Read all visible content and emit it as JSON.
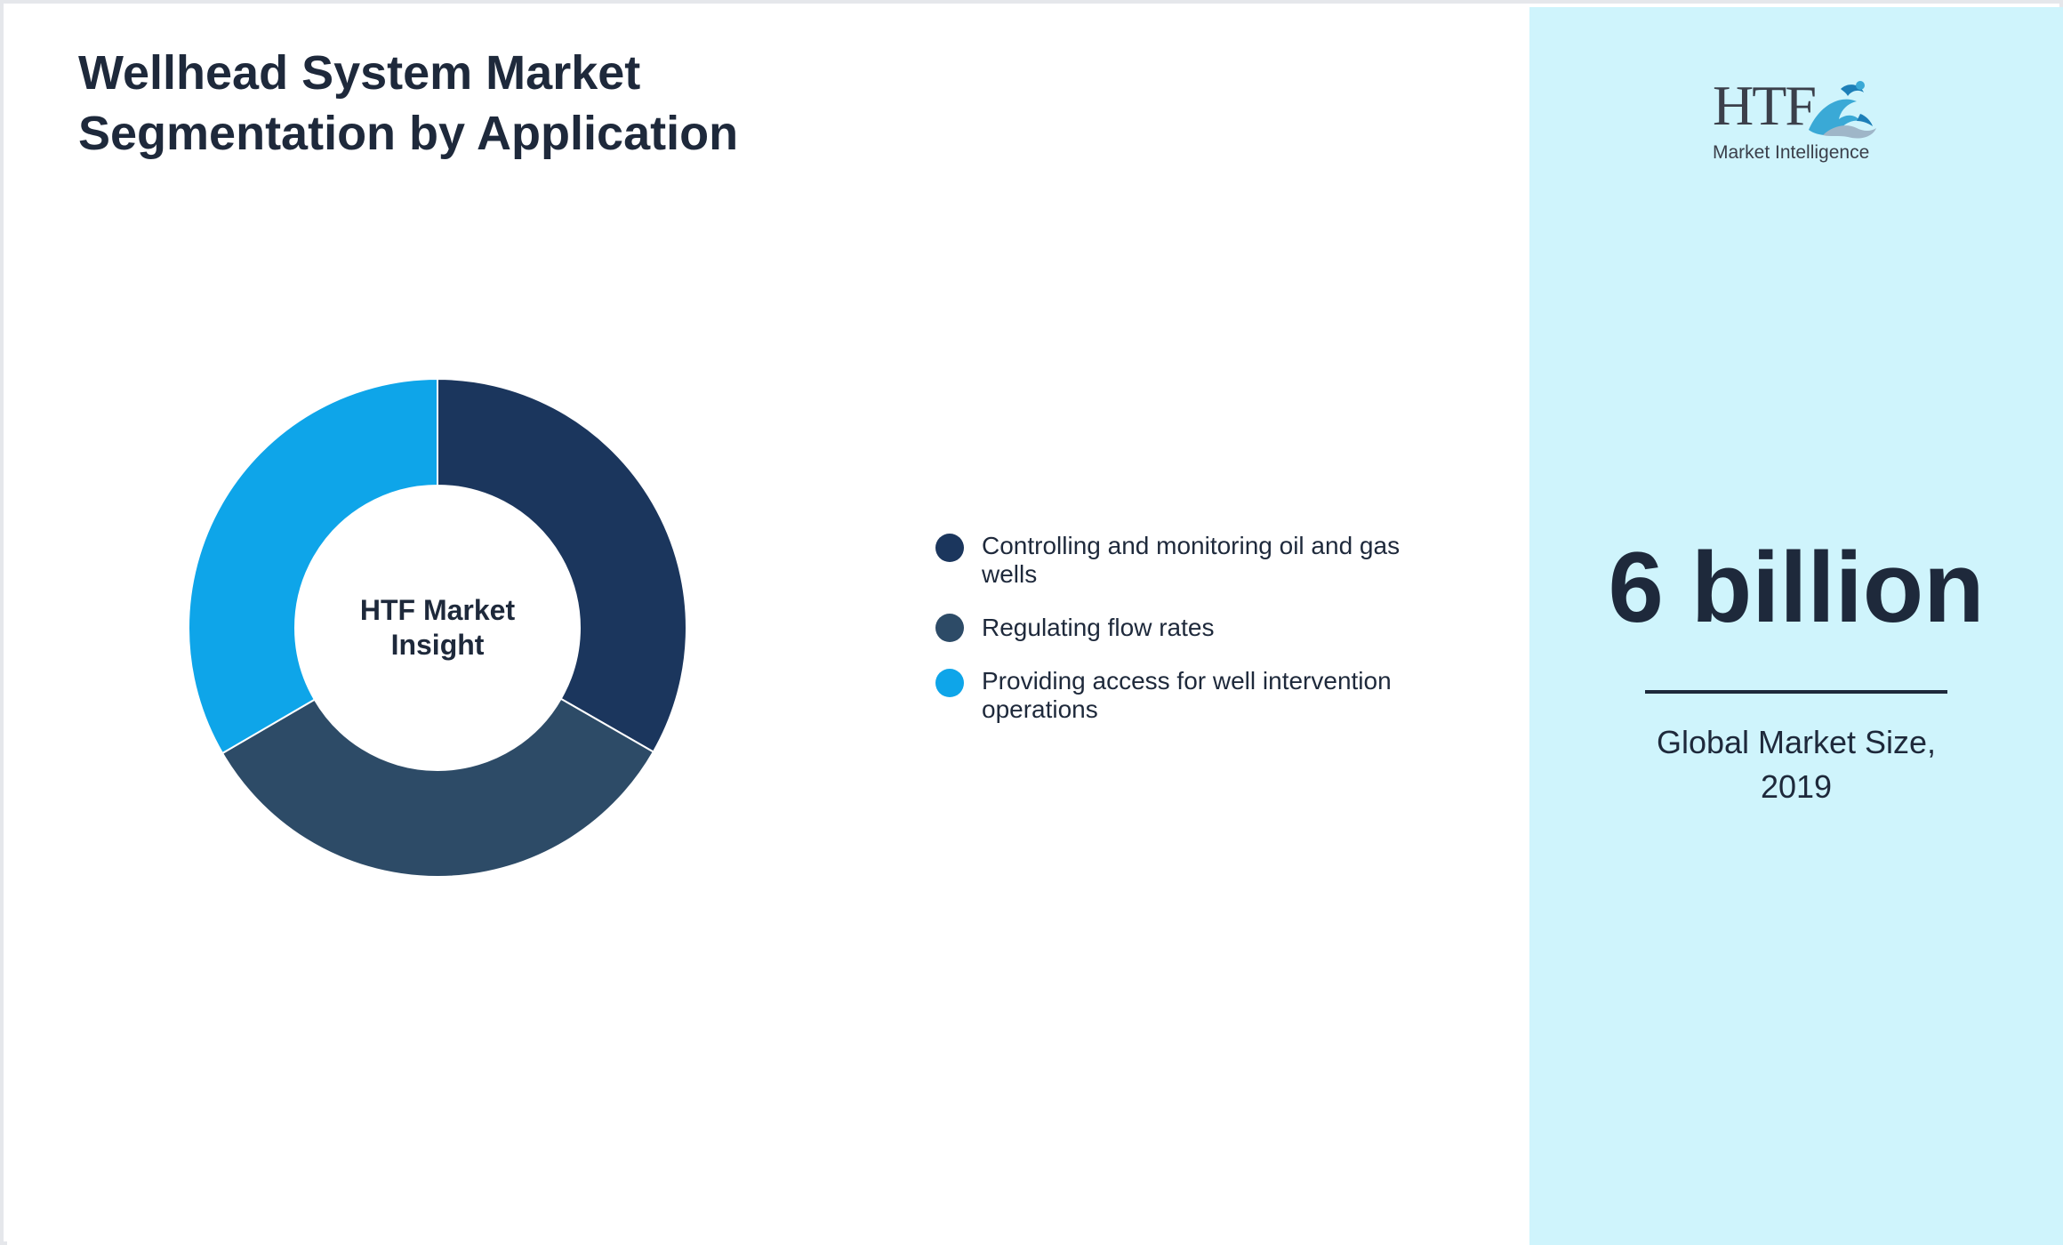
{
  "title_lines": [
    "Wellhead System Market",
    "Segmentation by Application"
  ],
  "chart_data": {
    "type": "pie",
    "variant": "donut",
    "title": "Wellhead System Market Segmentation by Application",
    "center_label_lines": [
      "HTF Market",
      "Insight"
    ],
    "categories": [
      "Controlling and monitoring oil and gas wells",
      "Regulating flow rates",
      "Providing access for well intervention operations"
    ],
    "values": [
      33.3,
      33.3,
      33.4
    ],
    "value_unit": "percent share (estimated, equal slices)",
    "colors": [
      "#1b365d",
      "#2d4b67",
      "#0ea5e9"
    ],
    "legend_placement": "right",
    "start_angle": "12 o'clock, clockwise"
  },
  "legend": {
    "items": [
      {
        "label_lines": [
          "Controlling and monitoring oil and gas",
          "wells"
        ],
        "color": "#1b365d"
      },
      {
        "label_lines": [
          "Regulating flow rates"
        ],
        "color": "#2d4b67"
      },
      {
        "label_lines": [
          "Providing access for well intervention",
          "operations"
        ],
        "color": "#0ea5e9"
      }
    ]
  },
  "logo": {
    "brand": "HTF",
    "subtitle": "Market Intelligence",
    "icon": "dolphin-wave-icon"
  },
  "kpi": {
    "value": "6 billion",
    "caption_lines": [
      "Global Market Size,",
      "2019"
    ]
  },
  "colors": {
    "right_panel_bg": "#cff4fc",
    "text": "#1e293b",
    "frame_border": "#e5e7eb"
  }
}
